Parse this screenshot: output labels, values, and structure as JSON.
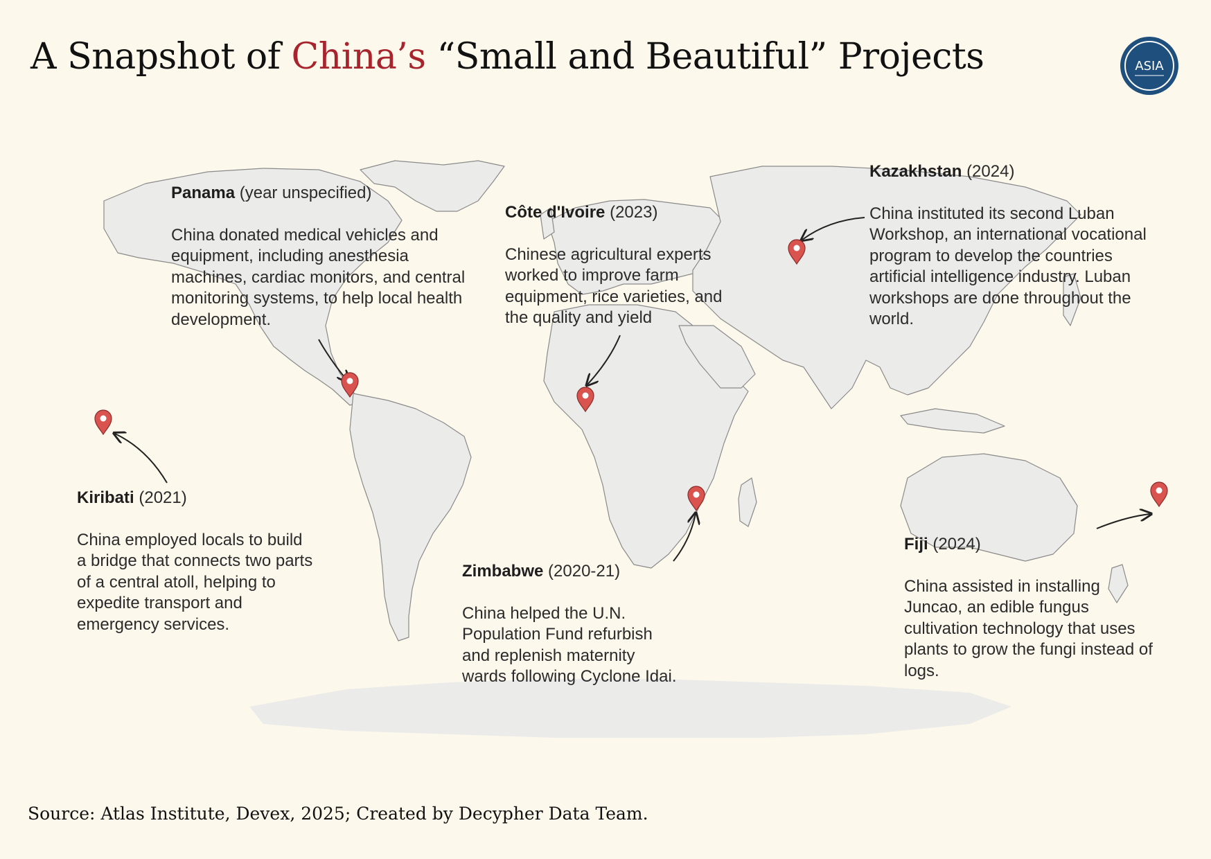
{
  "title": {
    "prefix": "A Snapshot of ",
    "accent": "China’s",
    "suffix": " “Small and Beautiful” Projects",
    "accent_color": "#a8242d"
  },
  "logo": {
    "text": "ASIA",
    "color": "#1f4f7d"
  },
  "map": {
    "land_color": "#ebebea",
    "border_color": "#8a8a8a",
    "pin_color": "#d9534f"
  },
  "projects": [
    {
      "id": "panama",
      "country": "Panama",
      "year": "(year unspecified)",
      "description": "China donated medical vehicles and equipment, including anesthesia machines, cardiac monitors, and central monitoring systems, to help local health development."
    },
    {
      "id": "cote",
      "country": "Côte d'Ivoire",
      "year": "(2023)",
      "description": "Chinese agricultural experts worked to improve farm equipment, rice varieties, and the quality and yield"
    },
    {
      "id": "kazakhstan",
      "country": "Kazakhstan",
      "year": "(2024)",
      "description": "China instituted its second Luban Workshop, an international vocational program to develop the countries artificial intelligence industry. Luban workshops are done throughout the world."
    },
    {
      "id": "kiribati",
      "country": "Kiribati",
      "year": "(2021)",
      "description": "China employed locals to build a bridge that connects two parts of a central atoll, helping to expedite transport and emergency services."
    },
    {
      "id": "zimbabwe",
      "country": "Zimbabwe",
      "year": "(2020-21)",
      "description": "China helped the U.N. Population Fund refurbish and replenish maternity wards following Cyclone Idai."
    },
    {
      "id": "fiji",
      "country": "Fiji",
      "year": "(2024)",
      "description": "China assisted in installing Juncao, an edible fungus cultivation technology that uses plants to grow the fungi instead of logs."
    }
  ],
  "source": "Source: Atlas Institute, Devex, 2025; Created by Decypher Data Team."
}
